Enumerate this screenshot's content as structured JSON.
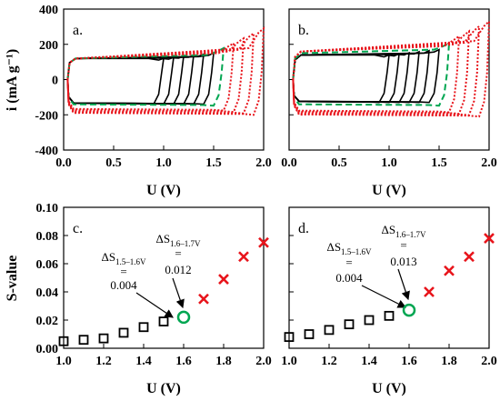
{
  "chart_data": [
    {
      "type": "line",
      "panel_label": "a.",
      "xlabel": "U (V)",
      "ylabel": "i (mA g⁻¹)",
      "xlim": [
        0,
        2.0
      ],
      "ylim": [
        -400,
        400
      ],
      "xticks": [
        "0.0",
        "0.5",
        "1.0",
        "1.5",
        "2.0"
      ],
      "yticks": [
        "-400",
        "-200",
        "0",
        "200",
        "400"
      ],
      "upper_limits_V": [
        1.0,
        1.1,
        1.2,
        1.3,
        1.4,
        1.5,
        1.6,
        1.7,
        1.8,
        1.9,
        2.0
      ],
      "series": [
        {
          "style": "solid",
          "color": "#000000",
          "upper_limits_V": [
            1.0,
            1.1,
            1.2,
            1.3,
            1.4,
            1.5
          ],
          "plateau_current": [
            120,
            -140
          ]
        },
        {
          "style": "dashed",
          "color": "#00a651",
          "upper_limits_V": [
            1.6
          ],
          "plateau_current": [
            120,
            -140
          ]
        },
        {
          "style": "dotted",
          "color": "#e8141b",
          "upper_limits_V": [
            1.7,
            1.8,
            1.9,
            2.0
          ],
          "plateau_current": [
            120,
            -160
          ]
        }
      ]
    },
    {
      "type": "line",
      "panel_label": "b.",
      "xlabel": "U (V)",
      "xlim": [
        0,
        2.0
      ],
      "ylim": [
        -400,
        400
      ],
      "xticks": [
        "0.0",
        "0.5",
        "1.0",
        "1.5",
        "2.0"
      ],
      "series": [
        {
          "style": "solid",
          "color": "#000000",
          "upper_limits_V": [
            1.0,
            1.1,
            1.2,
            1.3,
            1.4,
            1.5
          ],
          "plateau_current": [
            140,
            -130
          ]
        },
        {
          "style": "dashed",
          "color": "#00a651",
          "upper_limits_V": [
            1.6
          ],
          "plateau_current": [
            150,
            -140
          ]
        },
        {
          "style": "dotted",
          "color": "#e8141b",
          "upper_limits_V": [
            1.7,
            1.8,
            1.9,
            2.0
          ],
          "plateau_current": [
            160,
            -170
          ]
        }
      ]
    },
    {
      "type": "scatter",
      "panel_label": "c.",
      "xlabel": "U (V)",
      "ylabel": "S-value",
      "xlim": [
        1.0,
        2.0
      ],
      "ylim": [
        0,
        0.1
      ],
      "xticks": [
        "1.0",
        "1.2",
        "1.4",
        "1.6",
        "1.8",
        "2.0"
      ],
      "yticks": [
        "0.00",
        "0.02",
        "0.04",
        "0.06",
        "0.08",
        "0.10"
      ],
      "series": [
        {
          "marker": "square",
          "color": "#000000",
          "x": [
            1.0,
            1.1,
            1.2,
            1.3,
            1.4,
            1.5
          ],
          "y": [
            0.005,
            0.006,
            0.007,
            0.011,
            0.015,
            0.019
          ]
        },
        {
          "marker": "circle",
          "color": "#00a651",
          "x": [
            1.6
          ],
          "y": [
            0.022
          ]
        },
        {
          "marker": "x",
          "color": "#e8141b",
          "x": [
            1.7,
            1.8,
            1.9,
            2.0
          ],
          "y": [
            0.035,
            0.049,
            0.065,
            0.075
          ]
        }
      ],
      "annotations": [
        {
          "delta": "ΔS",
          "sub": "1.5–1.6V",
          "eq": "=",
          "value": "0.004"
        },
        {
          "delta": "ΔS",
          "sub": "1.6–1.7V",
          "eq": "=",
          "value": "0.012"
        }
      ]
    },
    {
      "type": "scatter",
      "panel_label": "d.",
      "xlabel": "U (V)",
      "xlim": [
        1.0,
        2.0
      ],
      "ylim": [
        0,
        0.1
      ],
      "xticks": [
        "1.0",
        "1.2",
        "1.4",
        "1.6",
        "1.8",
        "2.0"
      ],
      "series": [
        {
          "marker": "square",
          "color": "#000000",
          "x": [
            1.0,
            1.1,
            1.2,
            1.3,
            1.4,
            1.5
          ],
          "y": [
            0.008,
            0.01,
            0.013,
            0.017,
            0.02,
            0.023
          ]
        },
        {
          "marker": "circle",
          "color": "#00a651",
          "x": [
            1.6
          ],
          "y": [
            0.027
          ]
        },
        {
          "marker": "x",
          "color": "#e8141b",
          "x": [
            1.7,
            1.8,
            1.9,
            2.0
          ],
          "y": [
            0.04,
            0.055,
            0.065,
            0.078
          ]
        }
      ],
      "annotations": [
        {
          "delta": "ΔS",
          "sub": "1.5–1.6V",
          "eq": "=",
          "value": "0.004"
        },
        {
          "delta": "ΔS",
          "sub": "1.6–1.7V",
          "eq": "=",
          "value": "0.013"
        }
      ]
    }
  ]
}
